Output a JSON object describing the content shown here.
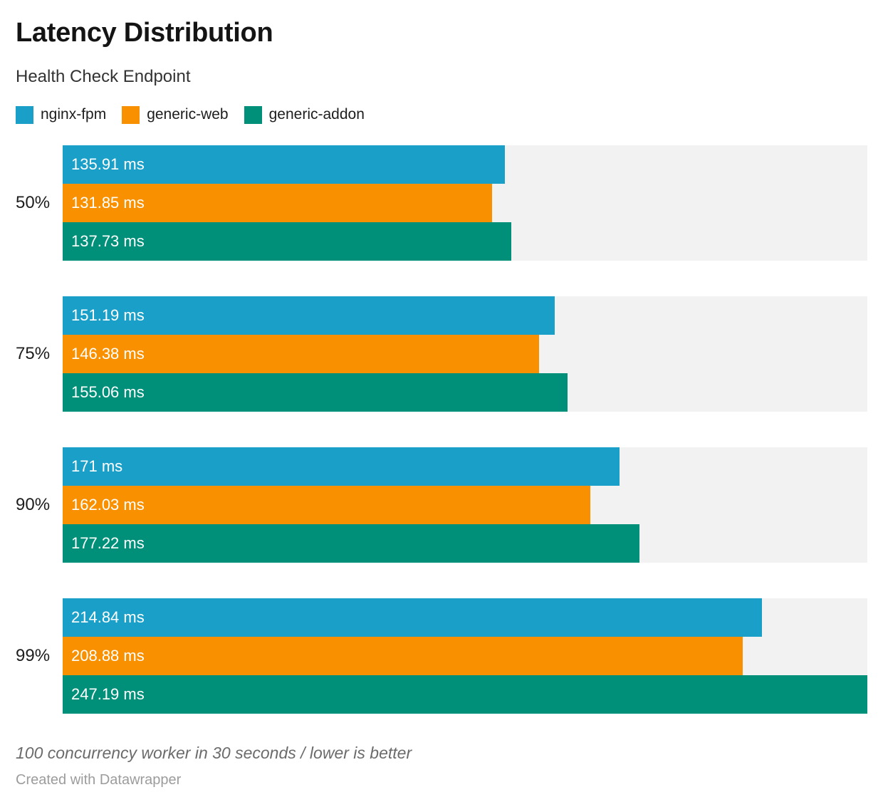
{
  "header": {
    "title": "Latency Distribution",
    "subtitle": "Health Check Endpoint"
  },
  "chart_data": {
    "type": "bar",
    "orientation": "horizontal",
    "title": "Latency Distribution",
    "subtitle": "Health Check Endpoint",
    "unit": "ms",
    "categories": [
      "50%",
      "75%",
      "90%",
      "99%"
    ],
    "series": [
      {
        "name": "nginx-fpm",
        "color": "#1aa0c8",
        "values": [
          135.91,
          151.19,
          171,
          214.84
        ],
        "labels": [
          "135.91 ms",
          "151.19 ms",
          "171 ms",
          "214.84 ms"
        ]
      },
      {
        "name": "generic-web",
        "color": "#f89000",
        "values": [
          131.85,
          146.38,
          162.03,
          208.88
        ],
        "labels": [
          "131.85 ms",
          "146.38 ms",
          "162.03 ms",
          "208.88 ms"
        ]
      },
      {
        "name": "generic-addon",
        "color": "#00907a",
        "values": [
          137.73,
          155.06,
          177.22,
          247.19
        ],
        "labels": [
          "137.73 ms",
          "155.06 ms",
          "177.22 ms",
          "247.19 ms"
        ]
      }
    ],
    "xlim": [
      0,
      247.19
    ],
    "grid": false,
    "legend_position": "top",
    "track_color": "#f2f2f2",
    "value_label_color": "#ffffff"
  },
  "footer": {
    "note": "100 concurrency worker in 30 seconds / lower is better",
    "attribution": "Created with Datawrapper"
  }
}
